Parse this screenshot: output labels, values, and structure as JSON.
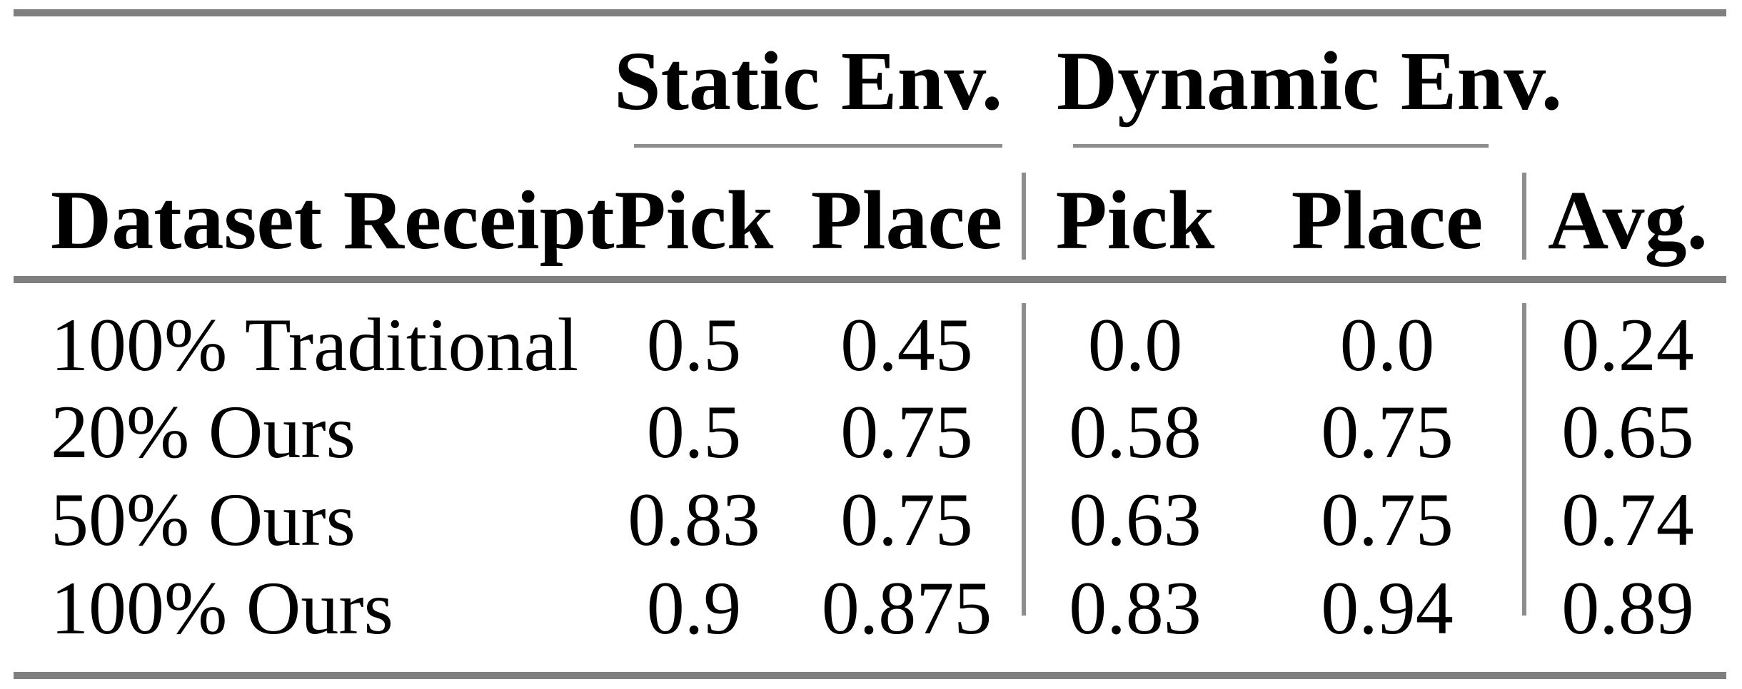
{
  "colors": {
    "background": "#ffffff",
    "text": "#000000",
    "rule_thick_gray": "#7f7f7f",
    "rule_thin_gray": "#8d8d8d"
  },
  "table": {
    "group_headers": [
      {
        "label": "Static Env."
      },
      {
        "label": "Dynamic Env."
      }
    ],
    "column_headers": {
      "row_label": "Dataset Receipt",
      "static_pick": "Pick",
      "static_place": "Place",
      "dynamic_pick": "Pick",
      "dynamic_place": "Place",
      "avg": "Avg."
    },
    "rows": [
      {
        "label": "100% Traditional",
        "values": [
          "0.5",
          "0.45",
          "0.0",
          "0.0",
          "0.24"
        ]
      },
      {
        "label": "20% Ours",
        "values": [
          "0.5",
          "0.75",
          "0.58",
          "0.75",
          "0.65"
        ]
      },
      {
        "label": "50% Ours",
        "values": [
          "0.83",
          "0.75",
          "0.63",
          "0.75",
          "0.74"
        ]
      },
      {
        "label": "100% Ours",
        "values": [
          "0.9",
          "0.875",
          "0.83",
          "0.94",
          "0.89"
        ]
      }
    ]
  }
}
